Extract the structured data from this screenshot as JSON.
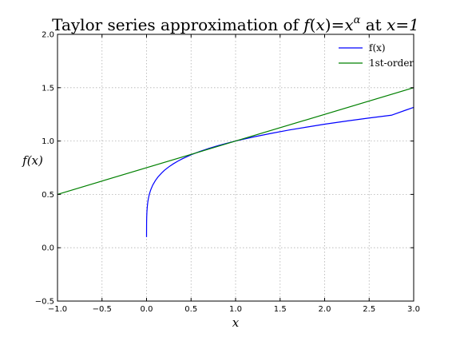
{
  "chart_data": {
    "type": "line",
    "title_prefix": "Taylor series approximation of ",
    "title_math": "f(x)=x^α at x=1",
    "title_math_parts": {
      "f": "f",
      "x": "x",
      "eq": "=",
      "exp": "α",
      "at": " at ",
      "xval": "x=1"
    },
    "xlabel": "x",
    "ylabel": "f(x)",
    "xlim": [
      -1.0,
      3.0
    ],
    "ylim": [
      -0.5,
      2.0
    ],
    "xticks": [
      "−1.0",
      "−0.5",
      "0.0",
      "0.5",
      "1.0",
      "1.5",
      "2.0",
      "2.5",
      "3.0"
    ],
    "xtick_values": [
      -1.0,
      -0.5,
      0.0,
      0.5,
      1.0,
      1.5,
      2.0,
      2.5,
      3.0
    ],
    "yticks": [
      "−0.5",
      "0.0",
      "0.5",
      "1.0",
      "1.5",
      "2.0"
    ],
    "ytick_values": [
      -0.5,
      0.0,
      0.5,
      1.0,
      1.5,
      2.0
    ],
    "grid": true,
    "legend_position": "top-right",
    "series": [
      {
        "name": "f(x)",
        "color": "#0000ff",
        "x": [
          0.0,
          0.0005,
          0.001,
          0.002,
          0.004,
          0.007,
          0.01,
          0.015,
          0.02,
          0.03,
          0.04,
          0.05,
          0.07,
          0.1,
          0.13,
          0.17,
          0.2,
          0.25,
          0.3,
          0.35,
          0.4,
          0.5,
          0.6,
          0.7,
          0.8,
          0.9,
          1.0,
          1.2,
          1.4,
          1.6,
          1.8,
          2.0,
          2.25,
          2.5,
          2.75,
          3.0
        ],
        "y": [
          0.1,
          0.218,
          0.251,
          0.289,
          0.333,
          0.37,
          0.398,
          0.433,
          0.458,
          0.496,
          0.525,
          0.549,
          0.588,
          0.631,
          0.665,
          0.701,
          0.725,
          0.758,
          0.786,
          0.811,
          0.833,
          0.871,
          0.903,
          0.931,
          0.956,
          0.979,
          1.0,
          1.038,
          1.072,
          1.103,
          1.131,
          1.158,
          1.188,
          1.216,
          1.242,
          1.316
        ]
      },
      {
        "name": "1st-order",
        "color": "#008000",
        "x": [
          -1.0,
          3.0
        ],
        "y": [
          0.5,
          1.5
        ]
      }
    ]
  }
}
